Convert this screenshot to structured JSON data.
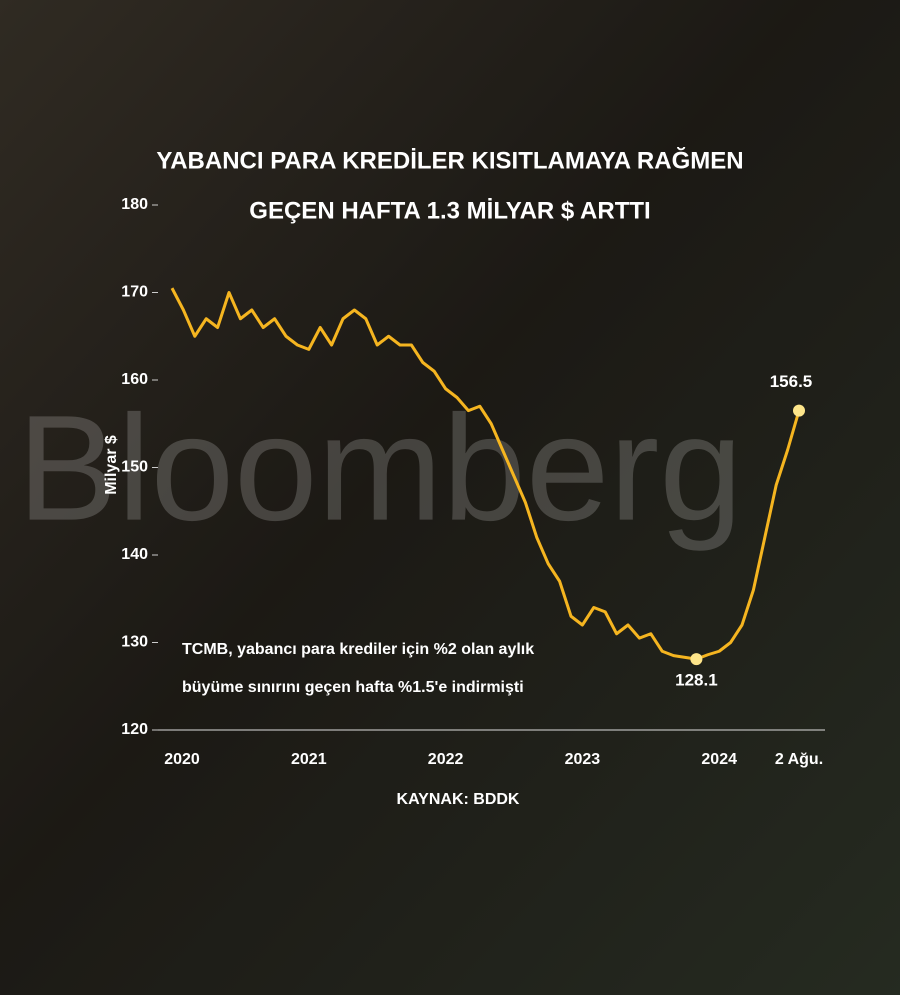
{
  "chart_data": {
    "type": "line",
    "title": [
      "YABANCI PARA KREDİLER KISITLAMAYA RAĞMEN",
      "GEÇEN HAFTA 1.3 MİLYAR $ ARTTI"
    ],
    "y_label": "Milyar $",
    "annotation": [
      "TCMB, yabancı para krediler için %2 olan aylık",
      "büyüme sınırını geçen hafta %1.5'e indirmişti"
    ],
    "source": "KAYNAK: BDDK",
    "watermark": "Bloomberg",
    "categories": [
      "2020",
      null,
      null,
      null,
      null,
      null,
      null,
      null,
      null,
      null,
      null,
      null,
      "2021",
      null,
      null,
      null,
      null,
      null,
      null,
      null,
      null,
      null,
      null,
      null,
      "2022",
      null,
      null,
      null,
      null,
      null,
      null,
      null,
      null,
      null,
      null,
      null,
      "2023",
      null,
      null,
      null,
      null,
      null,
      null,
      null,
      null,
      null,
      null,
      null,
      "2024",
      null,
      null,
      null,
      null,
      null,
      null,
      "2 Ağu."
    ],
    "values": [
      170.5,
      168,
      165,
      167,
      166,
      170,
      167,
      168,
      166,
      167,
      165,
      164,
      163.5,
      166,
      164,
      167,
      168,
      167,
      164,
      165,
      164,
      164,
      162,
      161,
      159,
      158,
      156.5,
      157,
      155,
      152,
      149,
      146,
      142,
      139,
      137,
      133,
      132,
      134,
      133.5,
      131,
      132,
      130.5,
      131,
      129,
      128.5,
      128.3,
      128.1,
      128.6,
      129,
      130,
      132,
      136,
      142,
      148,
      152,
      156.5
    ],
    "color": "#f5b520",
    "ylim": [
      120,
      180
    ],
    "yticks": [
      120,
      130,
      140,
      150,
      160,
      170,
      180
    ],
    "grid": false
  }
}
